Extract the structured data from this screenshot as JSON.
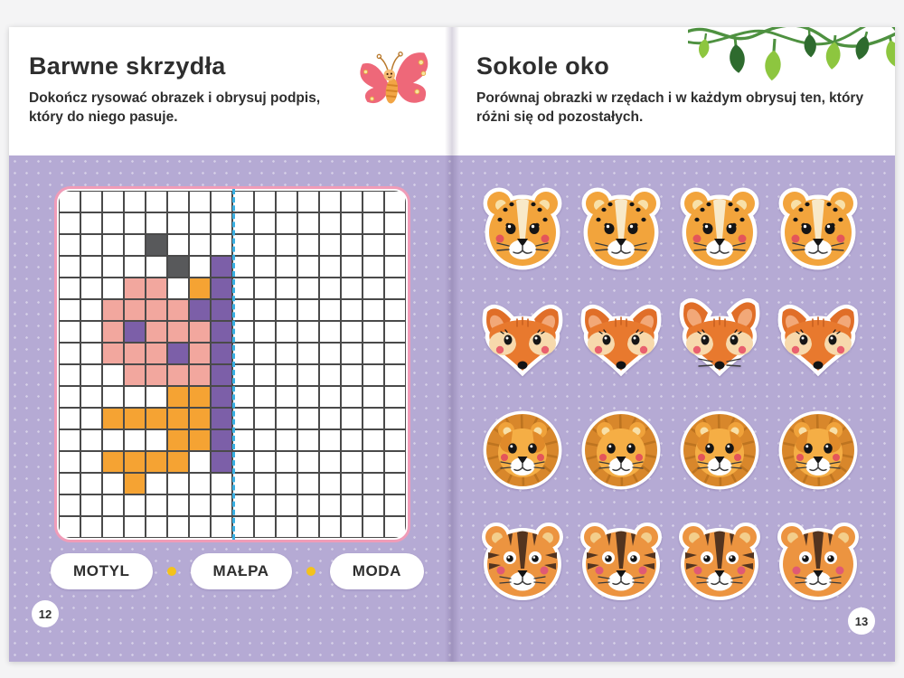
{
  "book": {
    "type": "children-activity-book-spread",
    "background_color": "#b5aad4",
    "paper_color": "#ffffff"
  },
  "left_page": {
    "title": "Barwne skrzydła",
    "instructions": "Dokończ rysować obrazek i obrysuj podpis, który do niego pasuje.",
    "page_number": "12",
    "decoration": "butterfly-illustration",
    "grid": {
      "rows": 16,
      "cols": 16,
      "mirror_line_after_col": 8,
      "mirror_line_color": "#38afe3",
      "frame_color": "#f09cb8",
      "line_color": "#4a4a4a",
      "legend": {
        ".": "empty",
        "G": "gray",
        "P": "pink",
        "O": "orange",
        "U": "purple"
      },
      "colors": {
        "gray": "#58595b",
        "pink": "#f2a79e",
        "orange": "#f5a333",
        "purple": "#7c5fa8"
      },
      "pixels": [
        "................",
        "................",
        "....G...........",
        ".....G.U........",
        "...PP.OU........",
        "..PPPPUU........",
        "..PUPPPU........",
        "..PPPUPU........",
        "...PPPPU........",
        ".....OOU........",
        "..OOOOOU........",
        ".....OOU........",
        "..OOOO.U........",
        "...O............",
        "................",
        "................"
      ],
      "depicts": "left half of a pixel butterfly to be mirrored"
    },
    "word_options": [
      "MOTYL",
      "MAŁPA",
      "MODA"
    ],
    "separator_dot_color": "#f3c21b"
  },
  "right_page": {
    "title": "Sokole oko",
    "instructions": "Porównaj obrazki w rzędach i w każdym obrysuj ten, który różni się od pozostałych.",
    "page_number": "13",
    "decoration": "vine-with-leaves",
    "rows": [
      {
        "animal": "leopard",
        "count": 4,
        "odd_index": 2,
        "difference": "missing rosy cheeks"
      },
      {
        "animal": "fox",
        "count": 4,
        "odd_index": 3,
        "difference": "has whiskers and upright ears"
      },
      {
        "animal": "lion",
        "count": 4,
        "odd_index": 2,
        "difference": "missing darker face patches"
      },
      {
        "animal": "tiger",
        "count": 4,
        "odd_index": 4,
        "difference": "missing cheek stripes"
      }
    ]
  }
}
